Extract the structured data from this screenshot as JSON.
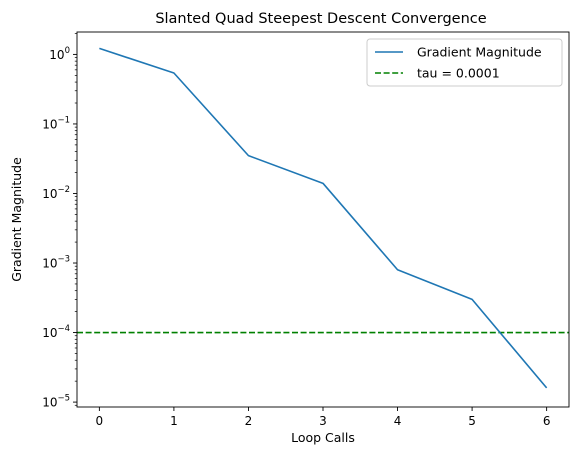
{
  "chart_data": {
    "type": "line",
    "title": "Slanted Quad Steepest Descent Convergence",
    "xlabel": "Loop Calls",
    "ylabel": "Gradient Magnitude",
    "yscale": "log",
    "x": [
      0,
      1,
      2,
      3,
      4,
      5,
      6
    ],
    "xlim": [
      -0.3,
      6.3
    ],
    "ylim": [
      8.5e-06,
      2.1
    ],
    "xticks": [
      {
        "value": 0,
        "label": "0"
      },
      {
        "value": 1,
        "label": "1"
      },
      {
        "value": 2,
        "label": "2"
      },
      {
        "value": 3,
        "label": "3"
      },
      {
        "value": 4,
        "label": "4"
      },
      {
        "value": 5,
        "label": "5"
      },
      {
        "value": 6,
        "label": "6"
      }
    ],
    "yticks": [
      {
        "value": 1,
        "base": "10",
        "exp": "0"
      },
      {
        "value": 0.1,
        "base": "10",
        "exp": "−1"
      },
      {
        "value": 0.01,
        "base": "10",
        "exp": "−2"
      },
      {
        "value": 0.001,
        "base": "10",
        "exp": "−3"
      },
      {
        "value": 0.0001,
        "base": "10",
        "exp": "−4"
      },
      {
        "value": 1e-05,
        "base": "10",
        "exp": "−5"
      }
    ],
    "series": [
      {
        "name": "Gradient Magnitude",
        "color": "#1f77b4",
        "style": "solid",
        "values": [
          1.22,
          0.54,
          0.035,
          0.014,
          0.0008,
          0.0003,
          1.6e-05
        ]
      }
    ],
    "hlines": [
      {
        "name": "tau = 0.0001",
        "value": 0.0001,
        "color": "#008000",
        "style": "dashed"
      }
    ],
    "legend": {
      "position": "top-right"
    },
    "grid": false
  }
}
